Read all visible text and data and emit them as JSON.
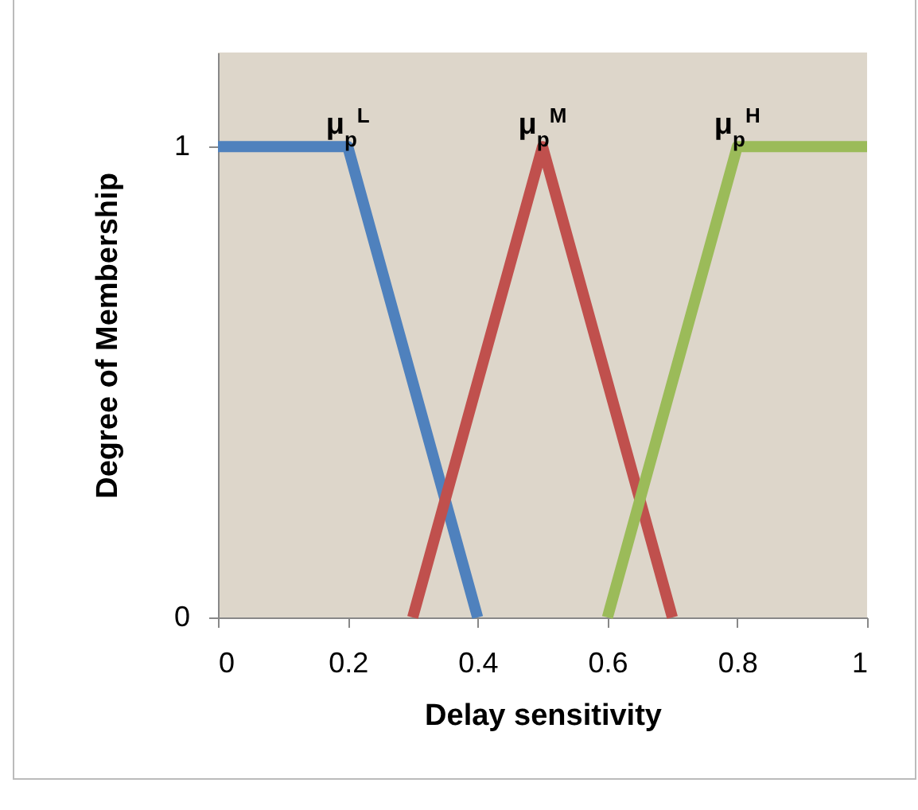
{
  "chart_data": {
    "type": "line",
    "xlabel": "Delay sensitivity",
    "ylabel": "Degree of Membership",
    "xlim": [
      0,
      1
    ],
    "xticks": [
      0,
      0.2,
      0.4,
      0.6,
      0.8,
      1
    ],
    "ylim": [
      0,
      1.2
    ],
    "yticks": [
      0,
      1
    ],
    "grid": false,
    "legend": false,
    "marker": "none",
    "line_style": "solid",
    "series": [
      {
        "name": "μ$_{p}$$^{L}$",
        "color": "#4f81bd",
        "x": [
          0,
          0.2,
          0.4
        ],
        "values": [
          1,
          1,
          0
        ]
      },
      {
        "name": "μ$_{p}$$^{M}$",
        "color": "#c0504d",
        "x": [
          0.3,
          0.5,
          0.7
        ],
        "values": [
          0,
          1,
          0
        ]
      },
      {
        "name": "μ$_{p}$$^{H}$",
        "color": "#9bbb59",
        "x": [
          0.6,
          0.8,
          1
        ],
        "values": [
          0,
          1,
          1
        ]
      }
    ]
  }
}
